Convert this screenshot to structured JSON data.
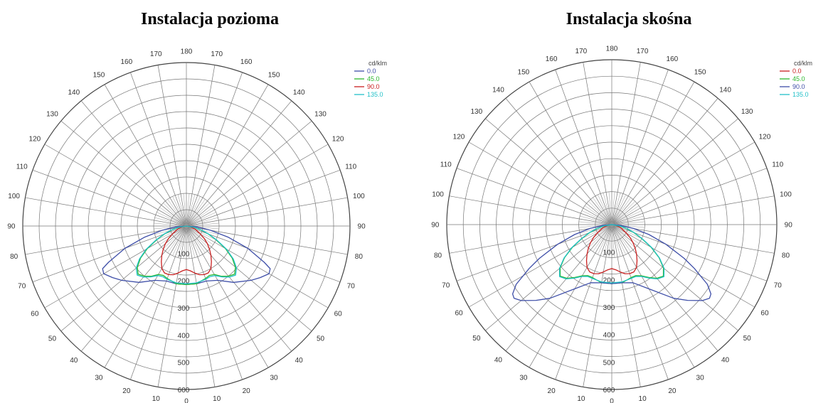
{
  "chart_data": [
    {
      "type": "polar",
      "title": "Instalacja pozioma",
      "legend_title": "cd/klm",
      "legend_position": "top-right",
      "radial_ticks": [
        "100",
        "200",
        "300",
        "400",
        "500",
        "600"
      ],
      "radial_max": 600,
      "angle_ticks": [
        "0",
        "10",
        "20",
        "30",
        "40",
        "50",
        "60",
        "70",
        "80",
        "90",
        "100",
        "110",
        "120",
        "130",
        "140",
        "150",
        "160",
        "170",
        "180"
      ],
      "grid": true,
      "series": [
        {
          "name": "0.0",
          "color": "#3f4fa8",
          "points": [
            [
              0,
              215
            ],
            [
              10,
              215
            ],
            [
              20,
              215
            ],
            [
              30,
              230
            ],
            [
              40,
              270
            ],
            [
              50,
              310
            ],
            [
              55,
              330
            ],
            [
              60,
              350
            ],
            [
              63,
              345
            ],
            [
              65,
              315
            ],
            [
              70,
              240
            ],
            [
              75,
              160
            ],
            [
              80,
              90
            ],
            [
              85,
              40
            ],
            [
              90,
              0
            ]
          ]
        },
        {
          "name": "45.0",
          "color": "#2db82d",
          "points": [
            [
              0,
              215
            ],
            [
              10,
              215
            ],
            [
              20,
              205
            ],
            [
              25,
              200
            ],
            [
              30,
              205
            ],
            [
              35,
              225
            ],
            [
              40,
              240
            ],
            [
              45,
              250
            ],
            [
              50,
              235
            ],
            [
              55,
              205
            ],
            [
              60,
              165
            ],
            [
              65,
              120
            ],
            [
              70,
              85
            ],
            [
              75,
              55
            ],
            [
              80,
              30
            ],
            [
              90,
              0
            ]
          ]
        },
        {
          "name": "90.0",
          "color": "#c92020",
          "points": [
            [
              0,
              160
            ],
            [
              5,
              165
            ],
            [
              10,
              175
            ],
            [
              15,
              185
            ],
            [
              20,
              190
            ],
            [
              25,
              190
            ],
            [
              30,
              180
            ],
            [
              35,
              160
            ],
            [
              40,
              140
            ],
            [
              45,
              120
            ],
            [
              50,
              100
            ],
            [
              55,
              80
            ],
            [
              60,
              60
            ],
            [
              70,
              35
            ],
            [
              80,
              15
            ],
            [
              90,
              0
            ]
          ]
        },
        {
          "name": "135.0",
          "color": "#22c0c8",
          "points": [
            [
              0,
              212
            ],
            [
              10,
              212
            ],
            [
              20,
              208
            ],
            [
              25,
              205
            ],
            [
              30,
              210
            ],
            [
              35,
              228
            ],
            [
              40,
              245
            ],
            [
              45,
              255
            ],
            [
              50,
              240
            ],
            [
              55,
              210
            ],
            [
              60,
              170
            ],
            [
              65,
              125
            ],
            [
              70,
              88
            ],
            [
              75,
              58
            ],
            [
              80,
              32
            ],
            [
              90,
              0
            ]
          ]
        }
      ]
    },
    {
      "type": "polar",
      "title": "Instalacja skośna",
      "legend_title": "cd/klm",
      "legend_position": "top-right",
      "radial_ticks": [
        "100",
        "200",
        "300",
        "400",
        "500",
        "600"
      ],
      "radial_max": 600,
      "angle_ticks": [
        "0",
        "10",
        "20",
        "30",
        "40",
        "50",
        "60",
        "70",
        "80",
        "90",
        "100",
        "110",
        "120",
        "130",
        "140",
        "150",
        "160",
        "170",
        "180"
      ],
      "grid": true,
      "series": [
        {
          "name": "0.0",
          "color": "#c92020",
          "points": [
            [
              0,
              160
            ],
            [
              5,
              165
            ],
            [
              10,
              175
            ],
            [
              15,
              185
            ],
            [
              20,
              190
            ],
            [
              25,
              190
            ],
            [
              30,
              180
            ],
            [
              35,
              160
            ],
            [
              40,
              140
            ],
            [
              45,
              120
            ],
            [
              50,
              100
            ],
            [
              55,
              80
            ],
            [
              60,
              60
            ],
            [
              70,
              35
            ],
            [
              80,
              15
            ],
            [
              90,
              0
            ]
          ]
        },
        {
          "name": "45.0",
          "color": "#2db82d",
          "points": [
            [
              0,
              215
            ],
            [
              10,
              215
            ],
            [
              20,
              205
            ],
            [
              25,
              205
            ],
            [
              30,
              215
            ],
            [
              35,
              235
            ],
            [
              40,
              255
            ],
            [
              45,
              265
            ],
            [
              50,
              245
            ],
            [
              55,
              210
            ],
            [
              60,
              165
            ],
            [
              65,
              120
            ],
            [
              70,
              85
            ],
            [
              75,
              55
            ],
            [
              80,
              30
            ],
            [
              90,
              0
            ]
          ]
        },
        {
          "name": "90.0",
          "color": "#3f4fa8",
          "points": [
            [
              0,
              215
            ],
            [
              10,
              215
            ],
            [
              20,
              225
            ],
            [
              30,
              270
            ],
            [
              40,
              350
            ],
            [
              45,
              390
            ],
            [
              50,
              430
            ],
            [
              53,
              445
            ],
            [
              55,
              440
            ],
            [
              58,
              410
            ],
            [
              62,
              340
            ],
            [
              65,
              290
            ],
            [
              70,
              210
            ],
            [
              75,
              140
            ],
            [
              80,
              80
            ],
            [
              85,
              35
            ],
            [
              90,
              0
            ]
          ]
        },
        {
          "name": "135.0",
          "color": "#22c0c8",
          "points": [
            [
              0,
              212
            ],
            [
              10,
              212
            ],
            [
              20,
              208
            ],
            [
              25,
              208
            ],
            [
              30,
              218
            ],
            [
              35,
              238
            ],
            [
              40,
              258
            ],
            [
              45,
              268
            ],
            [
              50,
              248
            ],
            [
              55,
              212
            ],
            [
              60,
              168
            ],
            [
              65,
              122
            ],
            [
              70,
              88
            ],
            [
              75,
              58
            ],
            [
              80,
              32
            ],
            [
              90,
              0
            ]
          ]
        }
      ]
    }
  ]
}
